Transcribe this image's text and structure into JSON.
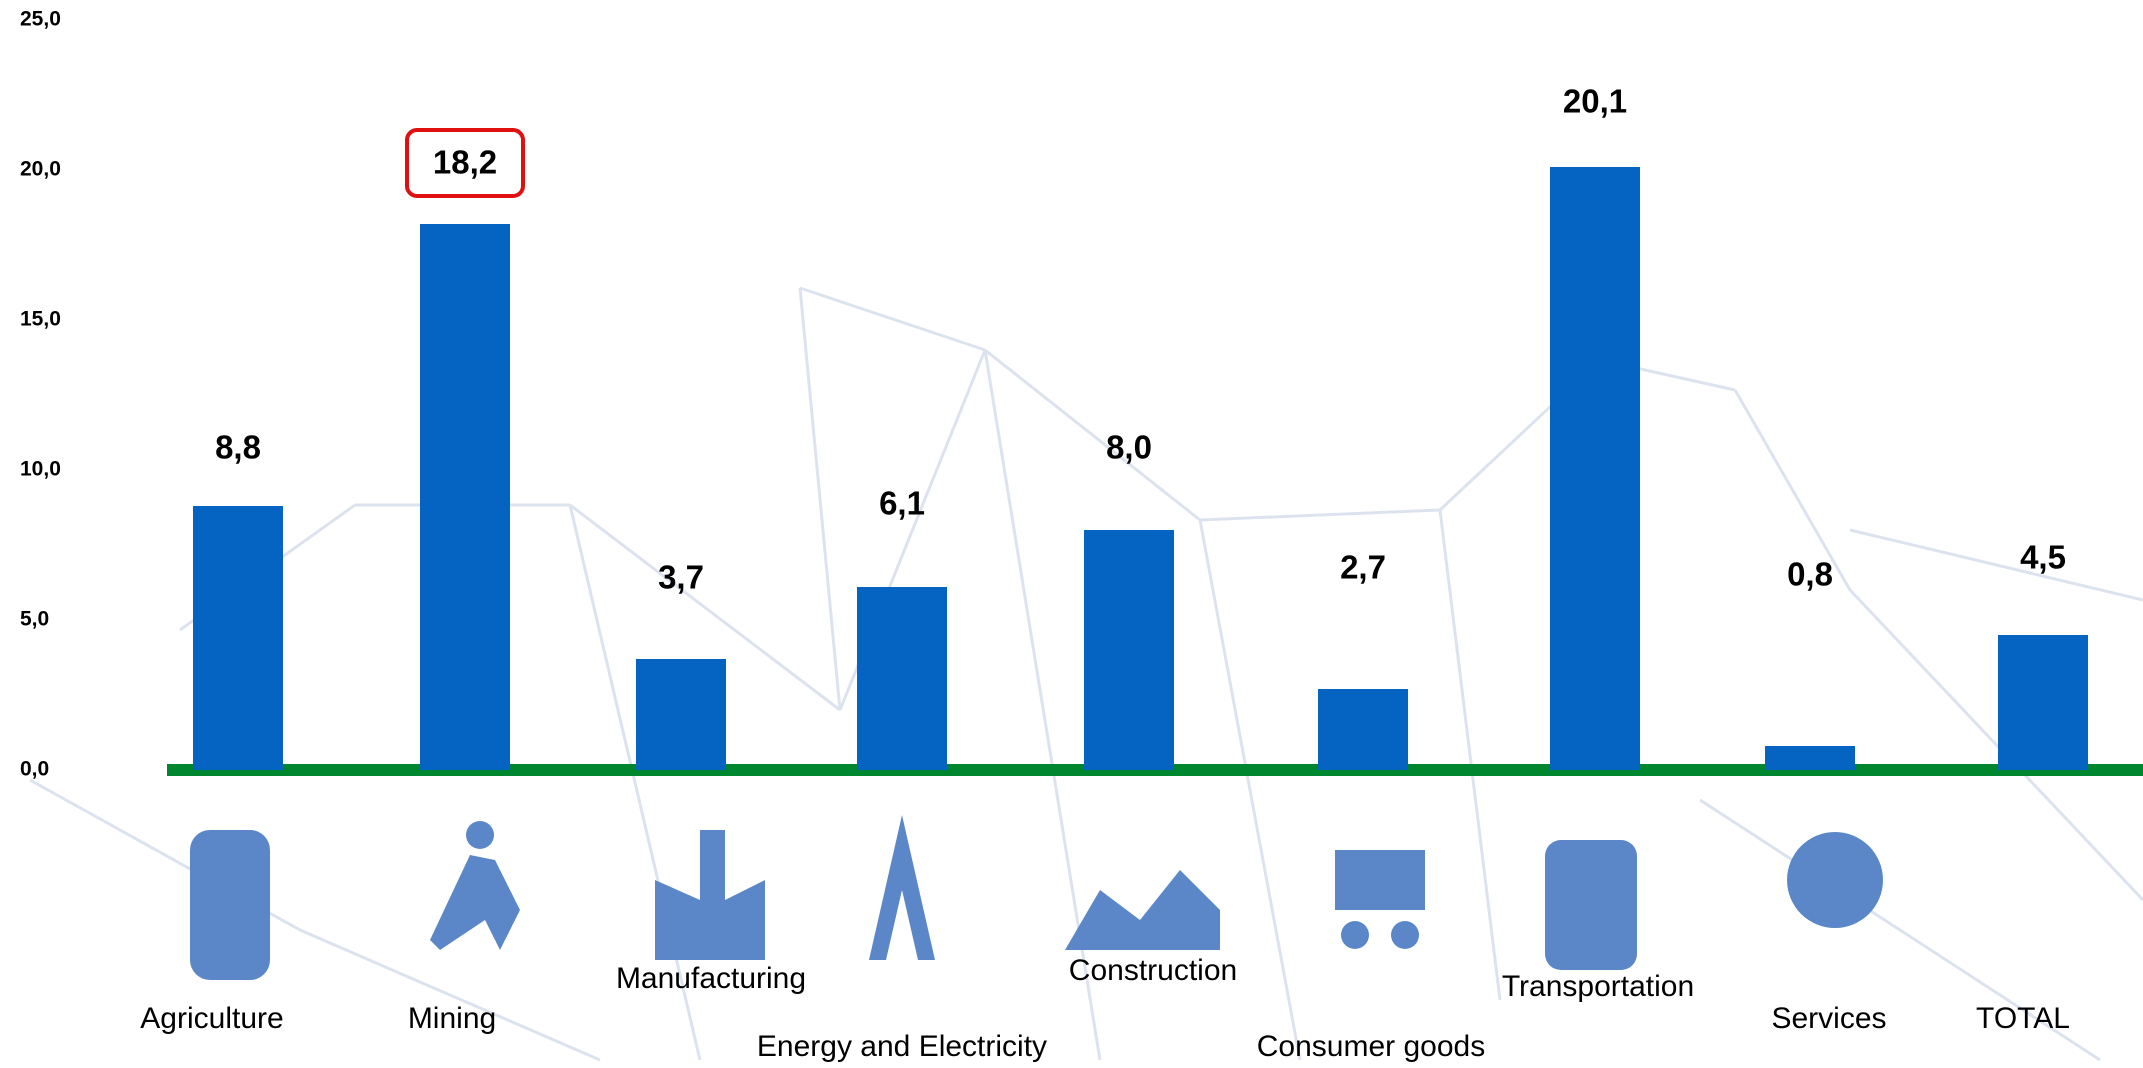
{
  "chart_data": {
    "type": "bar",
    "categories": [
      "Agriculture",
      "Mining",
      "Manufacturing",
      "Energy and Electricity",
      "Construction",
      "Consumer goods",
      "Transportation",
      "Services",
      "TOTAL"
    ],
    "values": [
      8.8,
      18.2,
      3.7,
      6.1,
      8.0,
      2.7,
      20.1,
      0.8,
      4.5
    ],
    "value_labels": [
      "8,8",
      "18,2",
      "3,7",
      "6,1",
      "8,0",
      "2,7",
      "20,1",
      "0,8",
      "4,5"
    ],
    "color": "#0563c1",
    "ylim": [
      0,
      25
    ],
    "yticks": [
      {
        "value": 0,
        "label": "0,0"
      },
      {
        "value": 5,
        "label": "5,0"
      },
      {
        "value": 10,
        "label": "10,0"
      },
      {
        "value": 15,
        "label": "15,0"
      },
      {
        "value": 20,
        "label": "20,0"
      },
      {
        "value": 25,
        "label": "25,0"
      }
    ],
    "grid": false
  }
}
